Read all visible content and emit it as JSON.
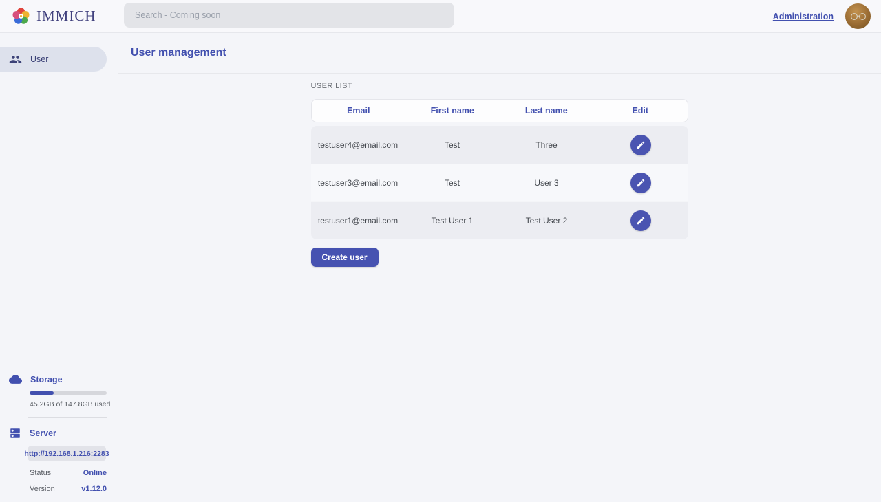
{
  "header": {
    "logo_text": "IMMICH",
    "search_placeholder": "Search - Coming soon",
    "admin_link": "Administration"
  },
  "sidebar": {
    "items": [
      {
        "label": "User",
        "icon": "users-icon",
        "active": true
      }
    ],
    "storage": {
      "title": "Storage",
      "usage_text": "45.2GB of 147.8GB used",
      "percent_used": 31
    },
    "server": {
      "title": "Server",
      "url": "http://192.168.1.216:2283",
      "status_label": "Status",
      "status_value": "Online",
      "version_label": "Version",
      "version_value": "v1.12.0"
    }
  },
  "main": {
    "page_title": "User management",
    "section_label": "USER LIST",
    "table": {
      "columns": [
        "Email",
        "First name",
        "Last name",
        "Edit"
      ],
      "rows": [
        {
          "email": "testuser4@email.com",
          "first_name": "Test",
          "last_name": "Three"
        },
        {
          "email": "testuser3@email.com",
          "first_name": "Test",
          "last_name": "User 3"
        },
        {
          "email": "testuser1@email.com",
          "first_name": "Test User 1",
          "last_name": "Test User 2"
        }
      ]
    },
    "create_button": "Create user"
  },
  "icons": {
    "logo": "immich-flower-icon",
    "nav_user": "users-icon",
    "storage": "cloud-icon",
    "server": "server-icon",
    "edit": "pencil-icon"
  },
  "colors": {
    "primary": "#4250af",
    "button": "#4652b1",
    "status_online": "#4250af",
    "row_odd": "#ecedf2",
    "row_even": "#f7f8fb"
  }
}
